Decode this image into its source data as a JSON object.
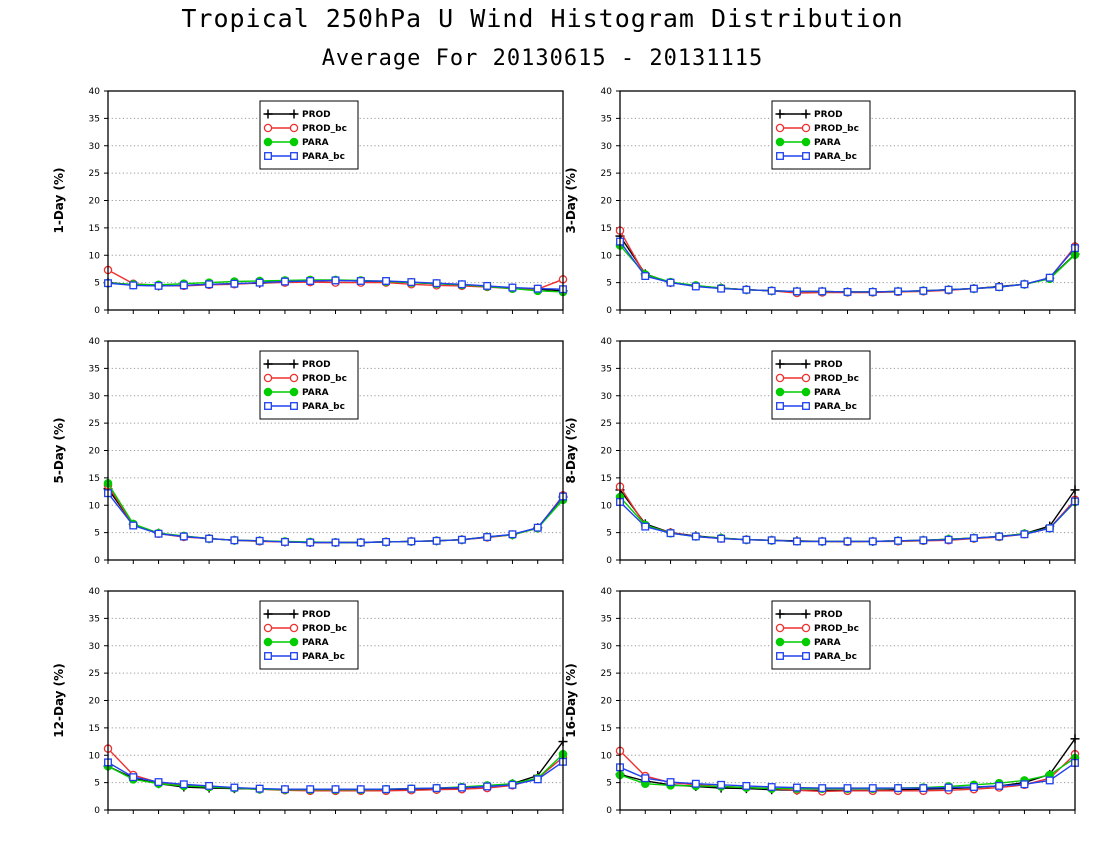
{
  "title": "Tropical 250hPa U Wind Histogram Distribution",
  "subtitle": "Average For 20130615 - 20131115",
  "legend_labels": [
    "PROD",
    "PROD_bc",
    "PARA",
    "PARA_bc"
  ],
  "series_colors": {
    "PROD": "#000000",
    "PROD_bc": "#ee3030",
    "PARA": "#00cc00",
    "PARA_bc": "#2040ee"
  },
  "series_markers": {
    "PROD": "plus",
    "PROD_bc": "open-circle",
    "PARA": "filled-circle",
    "PARA_bc": "open-square"
  },
  "chart_data": [
    {
      "type": "line",
      "ylabel": "1-Day (%)",
      "ylim": [
        0,
        40
      ],
      "yticks": [
        0,
        5,
        10,
        15,
        20,
        25,
        30,
        35,
        40
      ],
      "grid": "horizontal-dotted",
      "legend": "top-left",
      "series": [
        {
          "name": "PROD",
          "values": [
            5.0,
            4.6,
            4.4,
            4.5,
            4.7,
            4.8,
            4.9,
            5.1,
            5.2,
            5.4,
            5.3,
            5.2,
            5.0,
            4.8,
            4.6,
            4.3,
            4.0,
            3.8,
            3.5
          ]
        },
        {
          "name": "PROD_bc",
          "values": [
            7.3,
            4.8,
            4.5,
            4.4,
            4.6,
            4.7,
            5.0,
            5.0,
            5.1,
            5.0,
            5.0,
            5.0,
            4.7,
            4.5,
            4.4,
            4.2,
            3.9,
            3.8,
            5.6
          ]
        },
        {
          "name": "PARA",
          "values": [
            4.9,
            4.7,
            4.6,
            4.8,
            5.0,
            5.2,
            5.3,
            5.4,
            5.5,
            5.5,
            5.4,
            5.2,
            5.0,
            4.8,
            4.6,
            4.3,
            3.9,
            3.5,
            3.3
          ]
        },
        {
          "name": "PARA_bc",
          "values": [
            4.9,
            4.5,
            4.4,
            4.5,
            4.7,
            4.8,
            5.0,
            5.2,
            5.3,
            5.4,
            5.3,
            5.3,
            5.1,
            4.9,
            4.7,
            4.4,
            4.1,
            3.9,
            3.8
          ]
        }
      ]
    },
    {
      "type": "line",
      "ylabel": "3-Day (%)",
      "ylim": [
        0,
        40
      ],
      "yticks": [
        0,
        5,
        10,
        15,
        20,
        25,
        30,
        35,
        40
      ],
      "grid": "horizontal-dotted",
      "legend": "top-left",
      "series": [
        {
          "name": "PROD",
          "values": [
            13.5,
            6.6,
            5.0,
            4.4,
            4.0,
            3.7,
            3.5,
            3.4,
            3.4,
            3.3,
            3.3,
            3.4,
            3.5,
            3.7,
            3.9,
            4.3,
            4.7,
            5.8,
            10.2
          ]
        },
        {
          "name": "PROD_bc",
          "values": [
            14.5,
            6.3,
            5.0,
            4.4,
            4.0,
            3.7,
            3.5,
            3.1,
            3.2,
            3.2,
            3.2,
            3.3,
            3.4,
            3.6,
            3.9,
            4.2,
            4.7,
            5.8,
            11.6
          ]
        },
        {
          "name": "PARA",
          "values": [
            11.8,
            6.5,
            5.1,
            4.5,
            4.0,
            3.7,
            3.5,
            3.4,
            3.4,
            3.3,
            3.3,
            3.4,
            3.5,
            3.7,
            3.9,
            4.2,
            4.7,
            5.7,
            10.1
          ]
        },
        {
          "name": "PARA_bc",
          "values": [
            12.5,
            6.2,
            5.0,
            4.3,
            3.9,
            3.7,
            3.5,
            3.4,
            3.4,
            3.3,
            3.3,
            3.4,
            3.5,
            3.7,
            3.9,
            4.2,
            4.7,
            5.9,
            11.3
          ]
        }
      ]
    },
    {
      "type": "line",
      "ylabel": "5-Day (%)",
      "ylim": [
        0,
        40
      ],
      "yticks": [
        0,
        5,
        10,
        15,
        20,
        25,
        30,
        35,
        40
      ],
      "grid": "horizontal-dotted",
      "legend": "top-left",
      "series": [
        {
          "name": "PROD",
          "values": [
            13.0,
            6.5,
            4.9,
            4.3,
            3.9,
            3.6,
            3.5,
            3.3,
            3.2,
            3.2,
            3.2,
            3.3,
            3.4,
            3.5,
            3.7,
            4.2,
            4.6,
            5.9,
            11.5
          ]
        },
        {
          "name": "PROD_bc",
          "values": [
            13.6,
            6.4,
            4.8,
            4.2,
            3.9,
            3.6,
            3.4,
            3.3,
            3.2,
            3.2,
            3.2,
            3.3,
            3.4,
            3.5,
            3.7,
            4.1,
            4.6,
            5.8,
            11.8
          ]
        },
        {
          "name": "PARA",
          "values": [
            14.0,
            6.6,
            4.9,
            4.4,
            3.9,
            3.6,
            3.5,
            3.4,
            3.3,
            3.2,
            3.2,
            3.3,
            3.4,
            3.5,
            3.7,
            4.2,
            4.6,
            5.8,
            11.0
          ]
        },
        {
          "name": "PARA_bc",
          "values": [
            12.2,
            6.3,
            4.8,
            4.3,
            3.9,
            3.6,
            3.5,
            3.3,
            3.2,
            3.2,
            3.2,
            3.3,
            3.4,
            3.5,
            3.7,
            4.2,
            4.7,
            5.9,
            11.6
          ]
        }
      ]
    },
    {
      "type": "line",
      "ylabel": "8-Day (%)",
      "ylim": [
        0,
        40
      ],
      "yticks": [
        0,
        5,
        10,
        15,
        20,
        25,
        30,
        35,
        40
      ],
      "grid": "horizontal-dotted",
      "legend": "top-left",
      "series": [
        {
          "name": "PROD",
          "values": [
            12.8,
            6.6,
            5.0,
            4.4,
            4.0,
            3.7,
            3.6,
            3.5,
            3.4,
            3.4,
            3.4,
            3.5,
            3.6,
            3.8,
            4.0,
            4.3,
            4.8,
            6.2,
            12.8
          ]
        },
        {
          "name": "PROD_bc",
          "values": [
            13.4,
            6.3,
            5.0,
            4.3,
            3.9,
            3.7,
            3.6,
            3.4,
            3.4,
            3.3,
            3.4,
            3.4,
            3.5,
            3.6,
            3.9,
            4.2,
            4.7,
            5.8,
            11.0
          ]
        },
        {
          "name": "PARA",
          "values": [
            11.5,
            6.4,
            4.9,
            4.3,
            4.0,
            3.7,
            3.6,
            3.4,
            3.4,
            3.4,
            3.4,
            3.5,
            3.6,
            3.8,
            4.0,
            4.3,
            4.8,
            5.8,
            10.6
          ]
        },
        {
          "name": "PARA_bc",
          "values": [
            10.6,
            6.1,
            4.9,
            4.3,
            3.9,
            3.7,
            3.6,
            3.4,
            3.4,
            3.4,
            3.4,
            3.5,
            3.6,
            3.7,
            4.0,
            4.3,
            4.7,
            5.8,
            10.7
          ]
        }
      ]
    },
    {
      "type": "line",
      "ylabel": "12-Day (%)",
      "ylim": [
        0,
        40
      ],
      "yticks": [
        0,
        5,
        10,
        15,
        20,
        25,
        30,
        35,
        40
      ],
      "grid": "horizontal-dotted",
      "legend": "top-left",
      "series": [
        {
          "name": "PROD",
          "values": [
            8.0,
            5.8,
            4.8,
            4.2,
            4.0,
            3.9,
            3.8,
            3.7,
            3.7,
            3.7,
            3.7,
            3.7,
            3.8,
            3.8,
            4.0,
            4.3,
            4.8,
            6.3,
            12.5
          ]
        },
        {
          "name": "PROD_bc",
          "values": [
            11.2,
            6.4,
            5.0,
            4.5,
            4.2,
            4.0,
            3.8,
            3.6,
            3.5,
            3.5,
            3.5,
            3.5,
            3.6,
            3.7,
            3.8,
            4.0,
            4.5,
            5.8,
            9.6
          ]
        },
        {
          "name": "PARA",
          "values": [
            8.0,
            5.6,
            4.8,
            4.4,
            4.2,
            4.0,
            3.8,
            3.7,
            3.7,
            3.7,
            3.7,
            3.8,
            3.9,
            4.0,
            4.2,
            4.5,
            4.8,
            5.8,
            10.2
          ]
        },
        {
          "name": "PARA_bc",
          "values": [
            8.7,
            6.0,
            5.1,
            4.7,
            4.4,
            4.1,
            3.9,
            3.8,
            3.8,
            3.8,
            3.8,
            3.8,
            3.9,
            4.0,
            4.1,
            4.3,
            4.6,
            5.6,
            8.8
          ]
        }
      ]
    },
    {
      "type": "line",
      "ylabel": "16-Day (%)",
      "ylim": [
        0,
        40
      ],
      "yticks": [
        0,
        5,
        10,
        15,
        20,
        25,
        30,
        35,
        40
      ],
      "grid": "horizontal-dotted",
      "legend": "top-left",
      "series": [
        {
          "name": "PROD",
          "values": [
            6.5,
            5.3,
            4.6,
            4.3,
            4.0,
            3.9,
            3.7,
            3.6,
            3.6,
            3.6,
            3.6,
            3.7,
            3.8,
            3.9,
            4.1,
            4.4,
            5.0,
            6.5,
            13.0
          ]
        },
        {
          "name": "PROD_bc",
          "values": [
            10.8,
            6.2,
            5.0,
            4.6,
            4.3,
            4.1,
            3.9,
            3.6,
            3.4,
            3.5,
            3.5,
            3.5,
            3.5,
            3.6,
            3.8,
            4.1,
            4.6,
            5.8,
            10.2
          ]
        },
        {
          "name": "PARA",
          "values": [
            6.4,
            4.8,
            4.5,
            4.4,
            4.3,
            4.1,
            3.9,
            3.9,
            3.9,
            3.9,
            3.9,
            4.0,
            4.1,
            4.3,
            4.6,
            4.9,
            5.4,
            6.4,
            9.5
          ]
        },
        {
          "name": "PARA_bc",
          "values": [
            7.8,
            5.8,
            5.1,
            4.8,
            4.6,
            4.4,
            4.2,
            4.1,
            4.0,
            4.0,
            4.0,
            4.0,
            4.0,
            4.1,
            4.2,
            4.4,
            4.7,
            5.4,
            8.6
          ]
        }
      ]
    }
  ]
}
